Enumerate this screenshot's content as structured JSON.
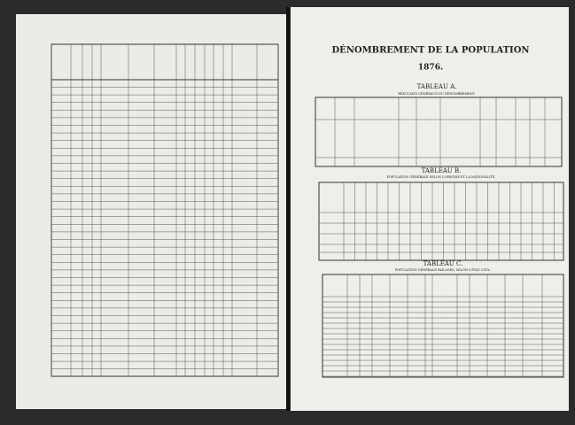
{
  "header": {
    "title": "DÉNOMBREMENT DE LA POPULATION",
    "year": "1876."
  },
  "tableau_a": {
    "title": "TABLEAU A.",
    "subtitle": "RÉSULTATS GÉNÉRAUX DU DÉNOMBREMENT."
  },
  "tableau_b": {
    "title": "TABLEAU B.",
    "subtitle": "POPULATION GÉNÉRALE SELON L'ORIGINE ET LA NATIONALITÉ."
  },
  "tableau_c": {
    "title": "TABLEAU C.",
    "subtitle": "POPULATION GÉNÉRALE PAR AGES, SELON L'ÉTAT CIVIL."
  }
}
